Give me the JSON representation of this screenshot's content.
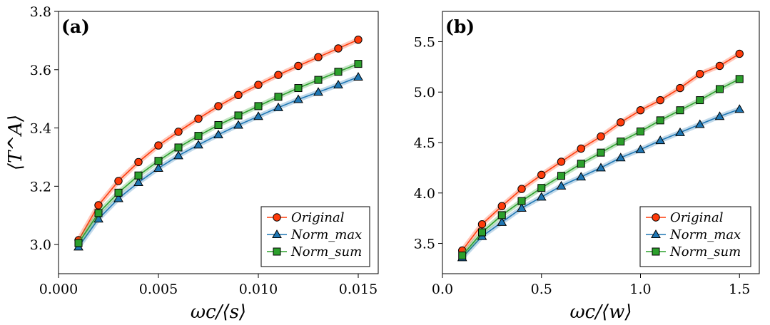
{
  "chart_data": [
    {
      "type": "line",
      "panel_label": "(a)",
      "xlabel": "ωc/⟨s⟩",
      "ylabel": "⟨T^A⟩",
      "xlim": [
        0.0,
        0.016
      ],
      "ylim": [
        2.9,
        3.8
      ],
      "xticks": [
        0.0,
        0.005,
        0.01,
        0.015
      ],
      "xtick_labels": [
        "0.000",
        "0.005",
        "0.010",
        "0.015"
      ],
      "yticks": [
        3.0,
        3.2,
        3.4,
        3.6,
        3.8
      ],
      "ytick_labels": [
        "3.0",
        "3.2",
        "3.4",
        "3.6",
        "3.8"
      ],
      "legend_position": "bottom-right",
      "x": [
        0.001,
        0.002,
        0.003,
        0.004,
        0.005,
        0.006,
        0.007,
        0.008,
        0.009,
        0.01,
        0.011,
        0.012,
        0.013,
        0.014,
        0.015
      ],
      "series": [
        {
          "name": "Original",
          "color": "#ff3b0a",
          "marker": "circle",
          "values": [
            3.015,
            3.135,
            3.218,
            3.283,
            3.34,
            3.387,
            3.432,
            3.475,
            3.513,
            3.548,
            3.582,
            3.613,
            3.643,
            3.673,
            3.703
          ]
        },
        {
          "name": "Norm_max",
          "color": "#1f77b4",
          "marker": "triangle",
          "values": [
            2.992,
            3.088,
            3.158,
            3.213,
            3.262,
            3.305,
            3.342,
            3.377,
            3.41,
            3.44,
            3.47,
            3.498,
            3.523,
            3.548,
            3.575
          ]
        },
        {
          "name": "Norm_sum",
          "color": "#2ca02c",
          "marker": "square",
          "values": [
            3.005,
            3.108,
            3.178,
            3.237,
            3.287,
            3.333,
            3.373,
            3.41,
            3.443,
            3.475,
            3.507,
            3.537,
            3.565,
            3.593,
            3.62
          ]
        }
      ]
    },
    {
      "type": "line",
      "panel_label": "(b)",
      "xlabel": "ωc/⟨w⟩",
      "ylabel": "",
      "xlim": [
        0.0,
        1.6
      ],
      "ylim": [
        3.2,
        5.8
      ],
      "xticks": [
        0.0,
        0.5,
        1.0,
        1.5
      ],
      "xtick_labels": [
        "0.0",
        "0.5",
        "1.0",
        "1.5"
      ],
      "yticks": [
        3.5,
        4.0,
        4.5,
        5.0,
        5.5
      ],
      "ytick_labels": [
        "3.5",
        "4.0",
        "4.5",
        "5.0",
        "5.5"
      ],
      "legend_position": "bottom-right",
      "x": [
        0.1,
        0.2,
        0.3,
        0.4,
        0.5,
        0.6,
        0.7,
        0.8,
        0.9,
        1.0,
        1.1,
        1.2,
        1.3,
        1.4,
        1.5
      ],
      "series": [
        {
          "name": "Original",
          "color": "#ff3b0a",
          "marker": "circle",
          "values": [
            3.43,
            3.69,
            3.87,
            4.04,
            4.18,
            4.31,
            4.44,
            4.56,
            4.7,
            4.82,
            4.92,
            5.04,
            5.18,
            5.26,
            5.38
          ]
        },
        {
          "name": "Norm_max",
          "color": "#1f77b4",
          "marker": "triangle",
          "values": [
            3.36,
            3.57,
            3.71,
            3.85,
            3.96,
            4.07,
            4.16,
            4.25,
            4.35,
            4.43,
            4.52,
            4.6,
            4.68,
            4.76,
            4.83
          ]
        },
        {
          "name": "Norm_sum",
          "color": "#2ca02c",
          "marker": "square",
          "values": [
            3.38,
            3.61,
            3.78,
            3.92,
            4.05,
            4.17,
            4.29,
            4.4,
            4.51,
            4.61,
            4.72,
            4.82,
            4.92,
            5.03,
            5.13
          ]
        }
      ]
    }
  ]
}
